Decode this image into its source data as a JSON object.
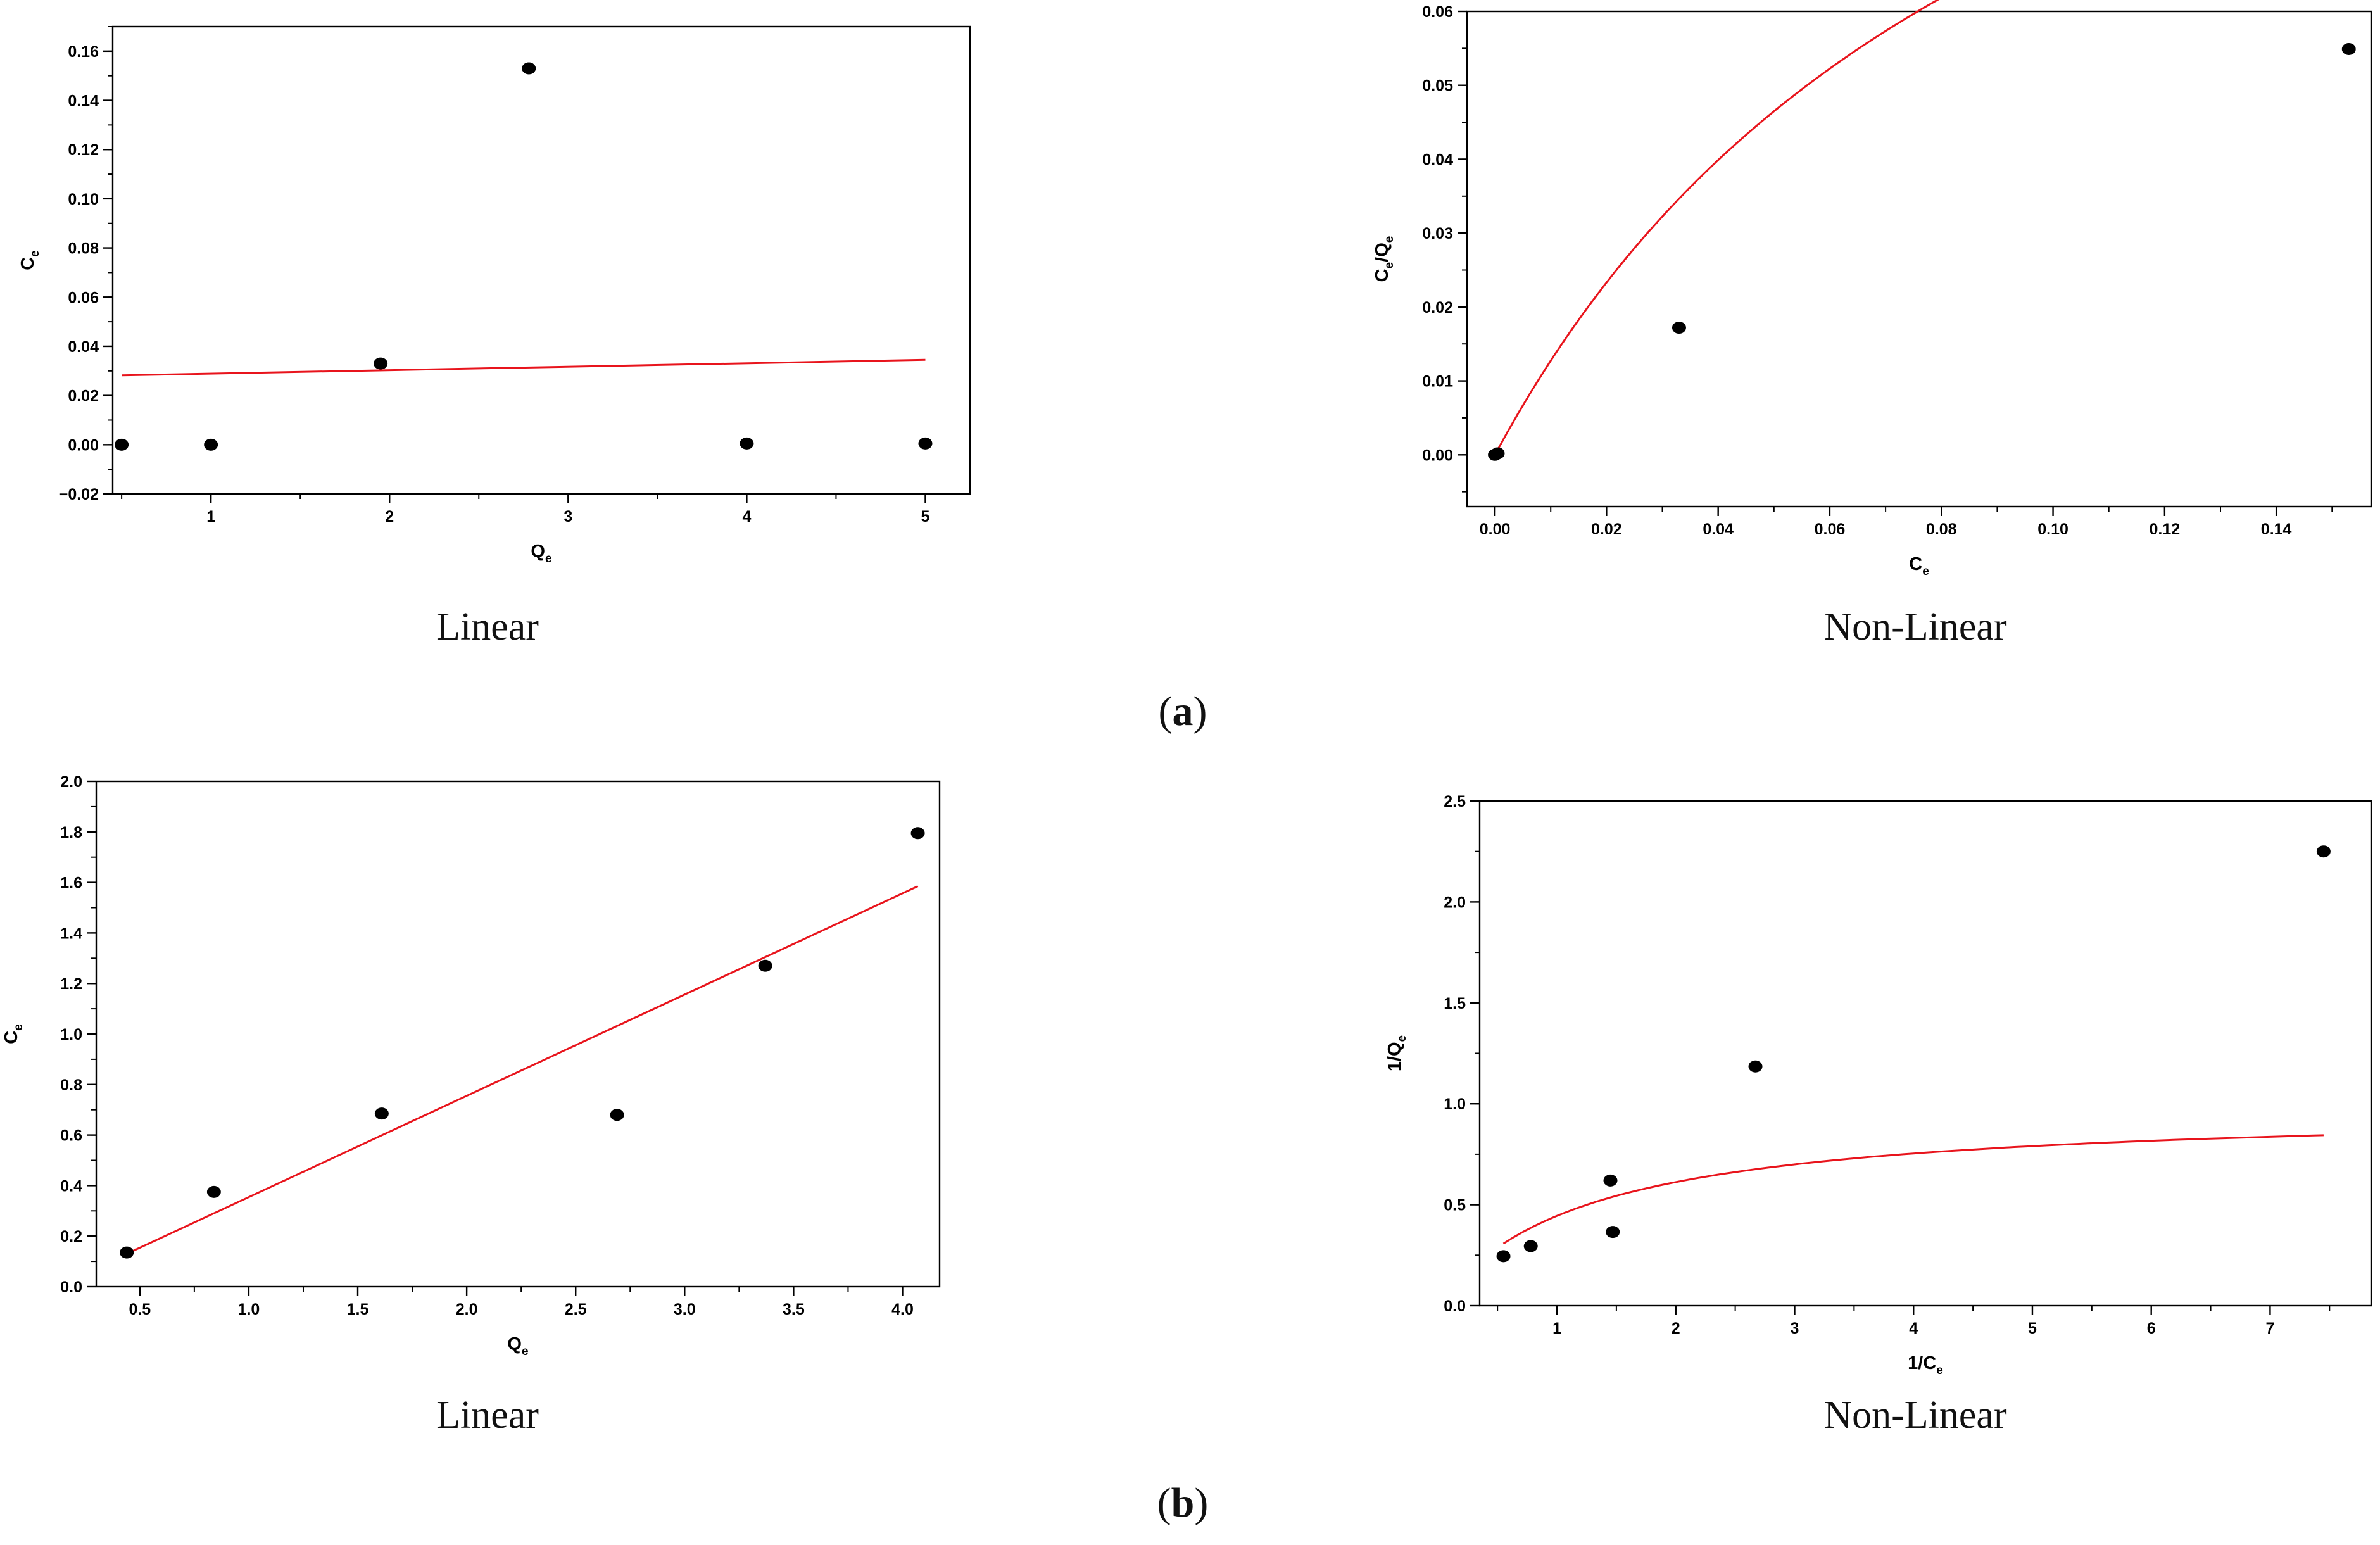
{
  "figure": {
    "label_a": "a",
    "label_b": "b"
  },
  "chart_data": [
    {
      "id": "a-linear",
      "type": "scatter",
      "caption": "Linear",
      "xlabel": {
        "main": "Q",
        "sub": "e",
        "rest": ""
      },
      "ylabel": {
        "main": "C",
        "sub": "e",
        "rest": ""
      },
      "xlim": [
        0.45,
        5.25
      ],
      "ylim": [
        -0.02,
        0.17
      ],
      "xticks": [
        1,
        2,
        3,
        4,
        5
      ],
      "yticks": [
        -0.02,
        0.0,
        0.02,
        0.04,
        0.06,
        0.08,
        0.1,
        0.12,
        0.14,
        0.16
      ],
      "xtick_labels": [
        "1",
        "2",
        "3",
        "4",
        "5"
      ],
      "ytick_labels": [
        "−0.02",
        "0.00",
        "0.02",
        "0.04",
        "0.06",
        "0.08",
        "0.10",
        "0.12",
        "0.14",
        "0.16"
      ],
      "points": {
        "x": [
          0.5,
          1.0,
          1.95,
          2.78,
          4.0,
          5.0
        ],
        "y": [
          0.0,
          0.0,
          0.033,
          0.153,
          0.0005,
          0.0005
        ]
      },
      "fit": {
        "kind": "line",
        "x": [
          0.5,
          5.0
        ],
        "y": [
          0.0282,
          0.0345
        ]
      },
      "colors": {
        "points": "#000000",
        "fit": "#e8141c"
      }
    },
    {
      "id": "a-nonlinear",
      "type": "scatter",
      "caption": "Non-Linear",
      "xlabel": {
        "main": "C",
        "sub": "e",
        "rest": ""
      },
      "ylabel": {
        "main": "C",
        "sub": "e",
        "rest": "/Q",
        "sub2": "e"
      },
      "xlim": [
        -0.005,
        0.157
      ],
      "ylim": [
        -0.007,
        0.06
      ],
      "xticks": [
        0.0,
        0.02,
        0.04,
        0.06,
        0.08,
        0.1,
        0.12,
        0.14
      ],
      "yticks": [
        0.0,
        0.01,
        0.02,
        0.03,
        0.04,
        0.05,
        0.06
      ],
      "xtick_labels": [
        "0.00",
        "0.02",
        "0.04",
        "0.06",
        "0.08",
        "0.10",
        "0.12",
        "0.14"
      ],
      "ytick_labels": [
        "0.00",
        "0.01",
        "0.02",
        "0.03",
        "0.04",
        "0.05",
        "0.06"
      ],
      "points": {
        "x": [
          0.0,
          0.0005,
          0.033,
          0.153
        ],
        "y": [
          0.0,
          0.0002,
          0.0172,
          0.0549
        ]
      },
      "fit": {
        "kind": "langmuir",
        "a": 0.1377,
        "b": 0.0981,
        "x0": 0.0005,
        "x1": 0.153
      },
      "colors": {
        "points": "#000000",
        "fit": "#e8141c"
      }
    },
    {
      "id": "b-linear",
      "type": "scatter",
      "caption": "Linear",
      "xlabel": {
        "main": "Q",
        "sub": "e",
        "rest": ""
      },
      "ylabel": {
        "main": "C",
        "sub": "e",
        "rest": ""
      },
      "xlim": [
        0.3,
        4.17
      ],
      "ylim": [
        0.0,
        2.0
      ],
      "xticks": [
        0.5,
        1.0,
        1.5,
        2.0,
        2.5,
        3.0,
        3.5,
        4.0
      ],
      "yticks": [
        0.0,
        0.2,
        0.4,
        0.6,
        0.8,
        1.0,
        1.2,
        1.4,
        1.6,
        1.8,
        2.0
      ],
      "xtick_labels": [
        "0.5",
        "1.0",
        "1.5",
        "2.0",
        "2.5",
        "3.0",
        "3.5",
        "4.0"
      ],
      "ytick_labels": [
        "0.0",
        "0.2",
        "0.4",
        "0.6",
        "0.8",
        "1.0",
        "1.2",
        "1.4",
        "1.6",
        "1.8",
        "2.0"
      ],
      "points": {
        "x": [
          0.44,
          0.84,
          1.61,
          2.69,
          3.37,
          4.07
        ],
        "y": [
          0.135,
          0.375,
          0.685,
          0.68,
          1.27,
          1.795
        ]
      },
      "fit": {
        "kind": "line",
        "x": [
          0.44,
          4.07
        ],
        "y": [
          0.13,
          1.585
        ]
      },
      "colors": {
        "points": "#000000",
        "fit": "#e8141c"
      }
    },
    {
      "id": "b-nonlinear",
      "type": "scatter",
      "caption": "Non-Linear",
      "xlabel": {
        "main": "1/C",
        "sub": "e",
        "rest": ""
      },
      "ylabel": {
        "main": "1/Q",
        "sub": "e",
        "rest": ""
      },
      "xlim": [
        0.35,
        7.85
      ],
      "ylim": [
        0.0,
        2.5
      ],
      "xticks": [
        1,
        2,
        3,
        4,
        5,
        6,
        7
      ],
      "yticks": [
        0.0,
        0.5,
        1.0,
        1.5,
        2.0,
        2.5
      ],
      "xtick_labels": [
        "1",
        "2",
        "3",
        "4",
        "5",
        "6",
        "7"
      ],
      "ytick_labels": [
        "0.0",
        "0.5",
        "1.0",
        "1.5",
        "2.0",
        "2.5"
      ],
      "points": {
        "x": [
          0.55,
          0.78,
          1.45,
          1.47,
          2.67,
          7.45
        ],
        "y": [
          0.245,
          0.295,
          0.62,
          0.365,
          1.185,
          2.25
        ]
      },
      "fit": {
        "kind": "langmuir",
        "a": 0.9805,
        "b": 1.2035,
        "x0": 0.55,
        "x1": 7.45
      },
      "colors": {
        "points": "#000000",
        "fit": "#e8141c"
      }
    }
  ]
}
